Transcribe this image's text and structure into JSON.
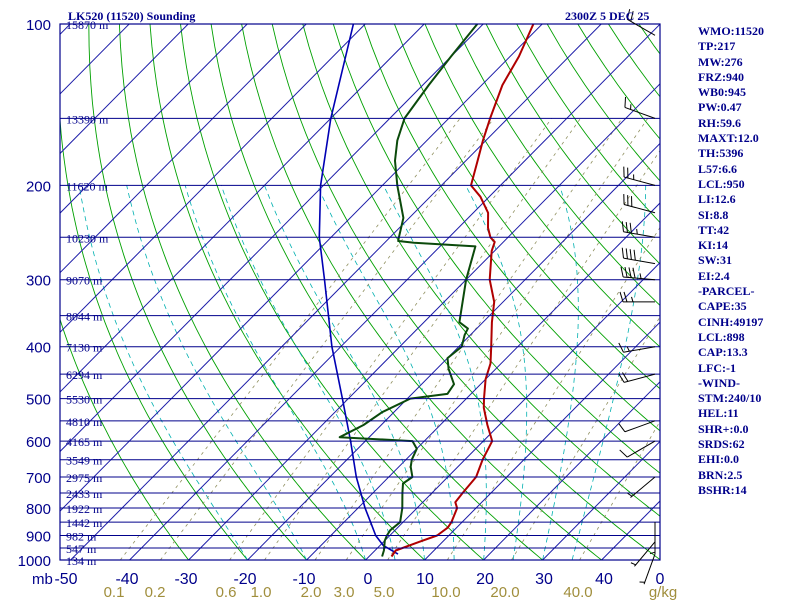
{
  "header": {
    "station": "LK520 (11520) Sounding",
    "time": "2300Z  5 DEC 25"
  },
  "indices": [
    "WMO:11520",
    "TP:217",
    "MW:276",
    "FRZ:940",
    "WB0:945",
    "PW:0.47",
    "RH:59.6",
    "MAXT:12.0",
    "TH:5396",
    "L57:6.6",
    "LCL:950",
    "LI:12.6",
    "SI:8.8",
    "TT:42",
    "KI:14",
    "SW:31",
    "EI:2.4",
    "-PARCEL-",
    "CAPE:35",
    "CINH:49197",
    "LCL:898",
    "CAP:13.3",
    "LFC:-1",
    "-WIND-",
    "STM:240/10",
    "HEL:11",
    "SHR+:0.0",
    "SRDS:62",
    "EHI:0.0",
    "BRN:2.5",
    "BSHR:14"
  ],
  "colors": {
    "frame": "#00008b",
    "isotherm": "#1c1ca8",
    "isobar": "#00008b",
    "dry_adiabat": "#00a000",
    "moist_adiabat": "#00b0b0",
    "mixing_ratio": "#909060",
    "temperature": "#b00000",
    "dewpoint": "#0b4a0b",
    "parcel": "#0000b4",
    "wind": "#000000"
  },
  "chart_data": {
    "type": "skew-t",
    "title": "LK520 (11520) Sounding",
    "valid_time": "2300Z  5 DEC 25",
    "p_unit": "mb",
    "t_unit": "C",
    "p_range": [
      1000,
      100
    ],
    "pressure_labels": [
      "100",
      "200",
      "300",
      "400",
      "500",
      "600",
      "700",
      "800",
      "900",
      "1000"
    ],
    "temperature_ticks": [
      "-50",
      "-40",
      "-30",
      "-20",
      "-10",
      "0",
      "10",
      "20",
      "30",
      "40",
      "0"
    ],
    "mixing_ratio_ticks": [
      "0.1",
      "0.2",
      "0.6",
      "1.0",
      "2.0",
      "3.0",
      "5.0",
      "10.0",
      "20.0",
      "40.0"
    ],
    "mixing_ratio_unit": "g/kg",
    "height_labels": [
      {
        "p": 100,
        "label": "15870 m"
      },
      {
        "p": 150,
        "label": "13390 m"
      },
      {
        "p": 200,
        "label": "11620 m"
      },
      {
        "p": 250,
        "label": "10230 m"
      },
      {
        "p": 300,
        "label": "9070 m"
      },
      {
        "p": 350,
        "label": "8044 m"
      },
      {
        "p": 400,
        "label": "7130 m"
      },
      {
        "p": 450,
        "label": "6294 m"
      },
      {
        "p": 500,
        "label": "5530 m"
      },
      {
        "p": 550,
        "label": "4810 m"
      },
      {
        "p": 600,
        "label": "4165 m"
      },
      {
        "p": 650,
        "label": "3549 m"
      },
      {
        "p": 700,
        "label": "2975 m"
      },
      {
        "p": 750,
        "label": "2433 m"
      },
      {
        "p": 800,
        "label": "1922 m"
      },
      {
        "p": 850,
        "label": "1442 m"
      },
      {
        "p": 900,
        "label": "982 m"
      },
      {
        "p": 950,
        "label": "547 m"
      },
      {
        "p": 1000,
        "label": "134 m"
      }
    ],
    "temperature_profile": [
      [
        985,
        3.8
      ],
      [
        960,
        3.5
      ],
      [
        925,
        6.0
      ],
      [
        900,
        8.0
      ],
      [
        870,
        8.5
      ],
      [
        850,
        8.2
      ],
      [
        800,
        6.8
      ],
      [
        780,
        5.5
      ],
      [
        750,
        5.2
      ],
      [
        700,
        4.8
      ],
      [
        650,
        3.0
      ],
      [
        600,
        1.5
      ],
      [
        560,
        -2.0
      ],
      [
        520,
        -5.5
      ],
      [
        500,
        -7.0
      ],
      [
        460,
        -10.0
      ],
      [
        430,
        -11.8
      ],
      [
        400,
        -14.5
      ],
      [
        360,
        -18.5
      ],
      [
        330,
        -21.5
      ],
      [
        300,
        -26.0
      ],
      [
        280,
        -28.5
      ],
      [
        265,
        -30.5
      ],
      [
        255,
        -31.5
      ],
      [
        250,
        -33.0
      ],
      [
        240,
        -35.0
      ],
      [
        225,
        -37.5
      ],
      [
        210,
        -41.5
      ],
      [
        200,
        -45.0
      ],
      [
        180,
        -48.0
      ],
      [
        165,
        -50.5
      ],
      [
        150,
        -53.0
      ],
      [
        130,
        -56.5
      ],
      [
        115,
        -58.5
      ],
      [
        100,
        -61.5
      ]
    ],
    "dewpoint_profile": [
      [
        985,
        2.2
      ],
      [
        960,
        1.5
      ],
      [
        920,
        0.0
      ],
      [
        900,
        -0.5
      ],
      [
        880,
        -0.8
      ],
      [
        850,
        -0.5
      ],
      [
        800,
        -2.5
      ],
      [
        750,
        -5.0
      ],
      [
        720,
        -6.5
      ],
      [
        700,
        -6.0
      ],
      [
        670,
        -8.0
      ],
      [
        650,
        -9.0
      ],
      [
        620,
        -10.0
      ],
      [
        600,
        -12.0
      ],
      [
        590,
        -25.0
      ],
      [
        560,
        -23.0
      ],
      [
        530,
        -22.0
      ],
      [
        500,
        -19.5
      ],
      [
        490,
        -14.0
      ],
      [
        470,
        -14.5
      ],
      [
        440,
        -18.0
      ],
      [
        420,
        -20.0
      ],
      [
        400,
        -19.5
      ],
      [
        380,
        -21.0
      ],
      [
        370,
        -21.5
      ],
      [
        360,
        -24.0
      ],
      [
        300,
        -30.0
      ],
      [
        260,
        -34.0
      ],
      [
        256,
        -45.0
      ],
      [
        254,
        -48.0
      ],
      [
        250,
        -48.5
      ],
      [
        230,
        -51.0
      ],
      [
        200,
        -57.5
      ],
      [
        180,
        -62.0
      ],
      [
        165,
        -65.0
      ],
      [
        150,
        -67.5
      ],
      [
        130,
        -69.0
      ],
      [
        115,
        -70.0
      ],
      [
        100,
        -71.0
      ]
    ],
    "parcel_profile": [
      [
        975,
        4.5
      ],
      [
        940,
        0.6
      ],
      [
        900,
        -2.4
      ],
      [
        850,
        -5.5
      ],
      [
        800,
        -8.8
      ],
      [
        700,
        -15.5
      ],
      [
        600,
        -22.5
      ],
      [
        500,
        -31.0
      ],
      [
        400,
        -41.5
      ],
      [
        300,
        -54.0
      ],
      [
        250,
        -62.0
      ],
      [
        200,
        -70.5
      ],
      [
        150,
        -80.0
      ],
      [
        100,
        -92.0
      ]
    ],
    "winds": [
      {
        "p": 105,
        "dir": 300,
        "spd": 20
      },
      {
        "p": 150,
        "dir": 290,
        "spd": 15
      },
      {
        "p": 200,
        "dir": 285,
        "spd": 25
      },
      {
        "p": 225,
        "dir": 285,
        "spd": 30
      },
      {
        "p": 250,
        "dir": 280,
        "spd": 35
      },
      {
        "p": 280,
        "dir": 280,
        "spd": 40
      },
      {
        "p": 300,
        "dir": 275,
        "spd": 45
      },
      {
        "p": 330,
        "dir": 270,
        "spd": 25
      },
      {
        "p": 400,
        "dir": 260,
        "spd": 15
      },
      {
        "p": 450,
        "dir": 255,
        "spd": 20
      },
      {
        "p": 550,
        "dir": 250,
        "spd": 10
      },
      {
        "p": 600,
        "dir": 240,
        "spd": 10
      },
      {
        "p": 700,
        "dir": 230,
        "spd": 5
      },
      {
        "p": 850,
        "dir": 180,
        "spd": 5
      },
      {
        "p": 925,
        "dir": 220,
        "spd": 5
      },
      {
        "p": 975,
        "dir": 200,
        "spd": 5
      }
    ]
  }
}
